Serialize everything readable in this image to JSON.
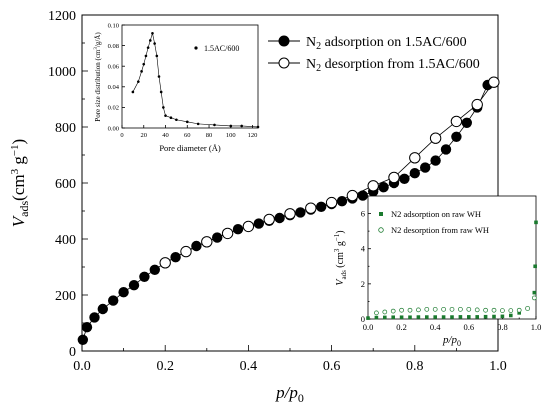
{
  "chart_data": [
    {
      "id": "main",
      "type": "scatter",
      "title": "",
      "xlabel": {
        "main": "p/p",
        "sub": "0"
      },
      "ylabel": {
        "main": "V",
        "sub": "ads",
        "unit": "(cm",
        "sup1": "3",
        "unit2": " g",
        "sup2": "−1",
        "close": ")"
      },
      "xlim": [
        0.0,
        1.0
      ],
      "ylim": [
        0,
        1200
      ],
      "xticks": [
        "0.0",
        "0.2",
        "0.4",
        "0.6",
        "0.8",
        "1.0"
      ],
      "yticks": [
        "0",
        "200",
        "400",
        "600",
        "800",
        "1000",
        "1200"
      ],
      "legend_position": "top-right",
      "series": [
        {
          "name": "N₂ adsorption on 1.5AC/600",
          "legend_parts": [
            "N",
            "2",
            " adsorption on 1.5AC/600"
          ],
          "marker": "filled-circle",
          "color": "#000000",
          "x": [
            0.002,
            0.012,
            0.03,
            0.05,
            0.075,
            0.1,
            0.125,
            0.15,
            0.175,
            0.2,
            0.225,
            0.25,
            0.275,
            0.3,
            0.325,
            0.35,
            0.375,
            0.4,
            0.425,
            0.45,
            0.475,
            0.5,
            0.525,
            0.55,
            0.575,
            0.6,
            0.625,
            0.65,
            0.675,
            0.7,
            0.725,
            0.75,
            0.775,
            0.8,
            0.825,
            0.85,
            0.875,
            0.9,
            0.925,
            0.95,
            0.975
          ],
          "y": [
            40,
            85,
            120,
            150,
            180,
            210,
            235,
            265,
            290,
            315,
            335,
            355,
            375,
            390,
            405,
            420,
            435,
            445,
            455,
            465,
            475,
            485,
            495,
            505,
            515,
            525,
            535,
            545,
            555,
            570,
            585,
            600,
            615,
            635,
            655,
            680,
            720,
            765,
            815,
            870,
            950
          ]
        },
        {
          "name": "N₂ desorption from 1.5AC/600",
          "legend_parts": [
            "N",
            "2",
            " desorption from 1.5AC/600"
          ],
          "marker": "open-circle",
          "color": "#000000",
          "x": [
            0.2,
            0.25,
            0.3,
            0.35,
            0.4,
            0.45,
            0.5,
            0.55,
            0.6,
            0.65,
            0.7,
            0.75,
            0.8,
            0.85,
            0.9,
            0.95,
            0.99
          ],
          "y": [
            315,
            355,
            390,
            420,
            445,
            470,
            490,
            510,
            530,
            555,
            590,
            620,
            690,
            760,
            820,
            880,
            960
          ]
        }
      ]
    },
    {
      "id": "inset-top",
      "type": "line",
      "title": "",
      "xlabel": "Pore diameter (Å)",
      "ylabel": {
        "main": "Pore size distribution (cm",
        "sup": "3",
        "rest": "/g/Å)"
      },
      "xlim": [
        0,
        125
      ],
      "ylim": [
        0.0,
        0.1
      ],
      "xticks": [
        "0",
        "20",
        "40",
        "60",
        "80",
        "100",
        "120"
      ],
      "yticks": [
        "0.00",
        "0.02",
        "0.04",
        "0.06",
        "0.08",
        "0.10"
      ],
      "series": [
        {
          "name": "1.5AC/600",
          "marker": "small-dot",
          "color": "#000000",
          "x": [
            10,
            15,
            18,
            20,
            22,
            24,
            26,
            28,
            30,
            32,
            34,
            36,
            38,
            40,
            45,
            50,
            60,
            70,
            85,
            100,
            110,
            125
          ],
          "y": [
            0.035,
            0.045,
            0.055,
            0.062,
            0.07,
            0.078,
            0.085,
            0.092,
            0.082,
            0.07,
            0.05,
            0.035,
            0.02,
            0.012,
            0.01,
            0.008,
            0.006,
            0.004,
            0.003,
            0.002,
            0.002,
            0.001
          ]
        }
      ]
    },
    {
      "id": "inset-bottom",
      "type": "scatter",
      "title": "",
      "xlabel": {
        "main": "p/p",
        "sub": "0"
      },
      "ylabel": {
        "main": "V",
        "sub": "ads",
        "unit": " (cm",
        "sup1": "3",
        "unit2": " g",
        "sup2": "−1",
        "close": ")"
      },
      "xlim": [
        0.0,
        1.0
      ],
      "ylim": [
        0,
        7
      ],
      "xticks": [
        "0.0",
        "0.2",
        "0.4",
        "0.6",
        "0.8",
        "1.0"
      ],
      "yticks": [
        "0",
        "2",
        "4",
        "6"
      ],
      "series": [
        {
          "name": "N2 adsorption on raw WH",
          "marker": "filled-square",
          "color": "#1a7a2e",
          "x": [
            0.0,
            0.05,
            0.1,
            0.15,
            0.2,
            0.25,
            0.3,
            0.35,
            0.4,
            0.45,
            0.5,
            0.55,
            0.6,
            0.65,
            0.7,
            0.75,
            0.8,
            0.85,
            0.9,
            0.95,
            0.99,
            0.995,
            1.0
          ],
          "y": [
            0.05,
            0.08,
            0.09,
            0.1,
            0.1,
            0.1,
            0.11,
            0.11,
            0.11,
            0.11,
            0.11,
            0.12,
            0.12,
            0.12,
            0.13,
            0.14,
            0.15,
            0.2,
            0.35,
            0.6,
            1.5,
            3.0,
            5.5
          ]
        },
        {
          "name": "N2 desorption from raw WH",
          "marker": "open-circle",
          "color": "#1a7a2e",
          "x": [
            0.05,
            0.1,
            0.15,
            0.2,
            0.25,
            0.3,
            0.35,
            0.4,
            0.45,
            0.5,
            0.55,
            0.6,
            0.65,
            0.7,
            0.75,
            0.8,
            0.85,
            0.9,
            0.95,
            0.99
          ],
          "y": [
            0.35,
            0.4,
            0.45,
            0.5,
            0.5,
            0.52,
            0.55,
            0.55,
            0.55,
            0.55,
            0.55,
            0.55,
            0.52,
            0.5,
            0.5,
            0.48,
            0.48,
            0.5,
            0.6,
            1.2
          ]
        }
      ]
    }
  ]
}
